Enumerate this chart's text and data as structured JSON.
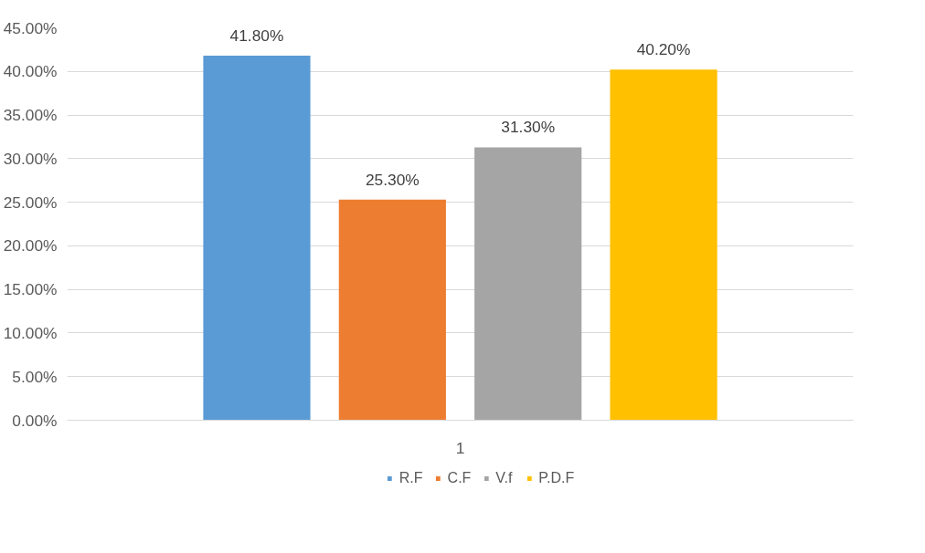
{
  "chart_data": {
    "type": "bar",
    "categories": [
      "1"
    ],
    "series": [
      {
        "name": "R.F",
        "color": "#5b9bd5",
        "values": [
          41.8
        ],
        "value_labels": [
          "41.80%"
        ]
      },
      {
        "name": "C.F",
        "color": "#ed7d31",
        "values": [
          25.3
        ],
        "value_labels": [
          "25.30%"
        ]
      },
      {
        "name": "V.f",
        "color": "#a5a5a5",
        "values": [
          31.3
        ],
        "value_labels": [
          "31.30%"
        ]
      },
      {
        "name": "P.D.F",
        "color": "#ffc000",
        "values": [
          40.2
        ],
        "value_labels": [
          "40.20%"
        ]
      }
    ],
    "ylim": [
      0,
      45
    ],
    "yticks": [
      {
        "value": 0,
        "label": "0.00%"
      },
      {
        "value": 5,
        "label": "5.00%"
      },
      {
        "value": 10,
        "label": "10.00%"
      },
      {
        "value": 15,
        "label": "15.00%"
      },
      {
        "value": 20,
        "label": "20.00%"
      },
      {
        "value": 25,
        "label": "25.00%"
      },
      {
        "value": 30,
        "label": "30.00%"
      },
      {
        "value": 35,
        "label": "35.00%"
      },
      {
        "value": 40,
        "label": "40.00%"
      },
      {
        "value": 45,
        "label": "45.00%"
      }
    ],
    "grid": "y",
    "legend": "bottom"
  }
}
